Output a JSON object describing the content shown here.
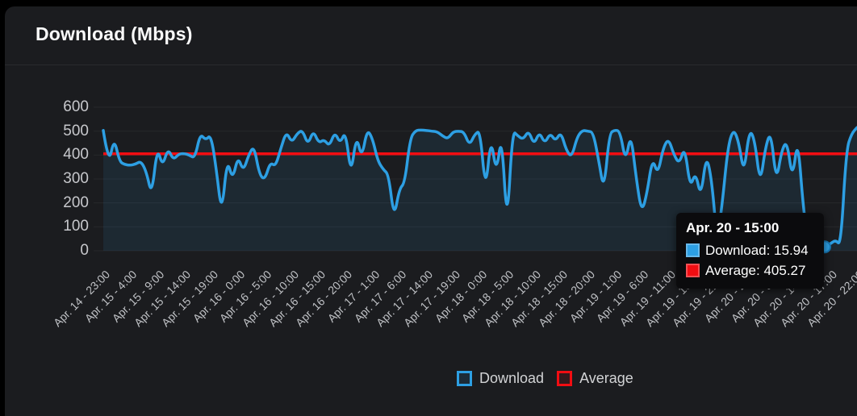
{
  "window": {
    "background": "#000000"
  },
  "panel": {
    "title": "Download (Mbps)",
    "background": "#1b1c1f",
    "divider_color": "#2a2b2e"
  },
  "legend": {
    "items": [
      {
        "label": "Download",
        "color": "#2d9fe3"
      },
      {
        "label": "Average",
        "color": "#f20d12"
      }
    ]
  },
  "tooltip": {
    "title": "Apr. 20 - 15:00",
    "rows": [
      {
        "series": "Download",
        "text": "Download: 15.94",
        "color": "#2d9fe3"
      },
      {
        "series": "Average",
        "text": "Average: 405.27",
        "color": "#f20d12"
      }
    ]
  },
  "chart_data": {
    "type": "line",
    "title": "Download (Mbps)",
    "xlabel": "",
    "ylabel": "",
    "ylim": [
      0,
      600
    ],
    "y_ticks": [
      600,
      500,
      400,
      300,
      200,
      100,
      0
    ],
    "grid": "horizontal",
    "legend_position": "bottom-center",
    "x_tick_labels": [
      "Apr. 14 - 23:00",
      "Apr. 15 - 4:00",
      "Apr. 15 - 9:00",
      "Apr. 15 - 14:00",
      "Apr. 15 - 19:00",
      "Apr. 16 - 0:00",
      "Apr. 16 - 5:00",
      "Apr. 16 - 10:00",
      "Apr. 16 - 15:00",
      "Apr. 16 - 20:00",
      "Apr. 17 - 1:00",
      "Apr. 17 - 6:00",
      "Apr. 17 - 14:00",
      "Apr. 17 - 19:00",
      "Apr. 18 - 0:00",
      "Apr. 18 - 5:00",
      "Apr. 18 - 10:00",
      "Apr. 18 - 15:00",
      "Apr. 18 - 20:00",
      "Apr. 19 - 1:00",
      "Apr. 19 - 6:00",
      "Apr. 19 - 11:00",
      "Apr. 19 - 16:00",
      "Apr. 19 - 21:00",
      "Apr. 20 - 2:00",
      "Apr. 20 - 9:00",
      "Apr. 20 - 14:00",
      "Apr. 20 - 17:00",
      "Apr. 20 - 22:00"
    ],
    "series": [
      {
        "name": "Download",
        "type": "line",
        "color": "#2d9fe3",
        "fill": "rgba(45,159,227,0.10)",
        "values": [
          503,
          358,
          472,
          373,
          360,
          357,
          362,
          375,
          330,
          230,
          433,
          352,
          428,
          380,
          404,
          407,
          400,
          386,
          490,
          462,
          486,
          340,
          150,
          385,
          295,
          395,
          332,
          400,
          440,
          318,
          296,
          370,
          352,
          430,
          498,
          452,
          490,
          505,
          442,
          503,
          450,
          465,
          437,
          497,
          448,
          502,
          313,
          484,
          386,
          508,
          470,
          375,
          340,
          318,
          135,
          260,
          283,
          470,
          503,
          505,
          503,
          500,
          498,
          480,
          468,
          498,
          500,
          497,
          440,
          487,
          503,
          245,
          478,
          320,
          492,
          93,
          503,
          480,
          465,
          503,
          443,
          497,
          448,
          492,
          458,
          497,
          420,
          390,
          475,
          504,
          500,
          496,
          380,
          248,
          490,
          505,
          500,
          370,
          494,
          300,
          158,
          240,
          388,
          318,
          430,
          470,
          400,
          363,
          437,
          262,
          330,
          222,
          402,
          300,
          40,
          200,
          430,
          510,
          460,
          318,
          508,
          465,
          275,
          435,
          500,
          285,
          420,
          460,
          295,
          475,
          180,
          25,
          18,
          22,
          15.94,
          28,
          45,
          22,
          420,
          490,
          515
        ]
      },
      {
        "name": "Average",
        "type": "horizontal-line",
        "color": "#f20d12",
        "value": 405.27
      }
    ],
    "highlighted_point": {
      "series": "Download",
      "index": 134,
      "x_label": "Apr. 20 - 15:00",
      "value": 15.94
    }
  }
}
